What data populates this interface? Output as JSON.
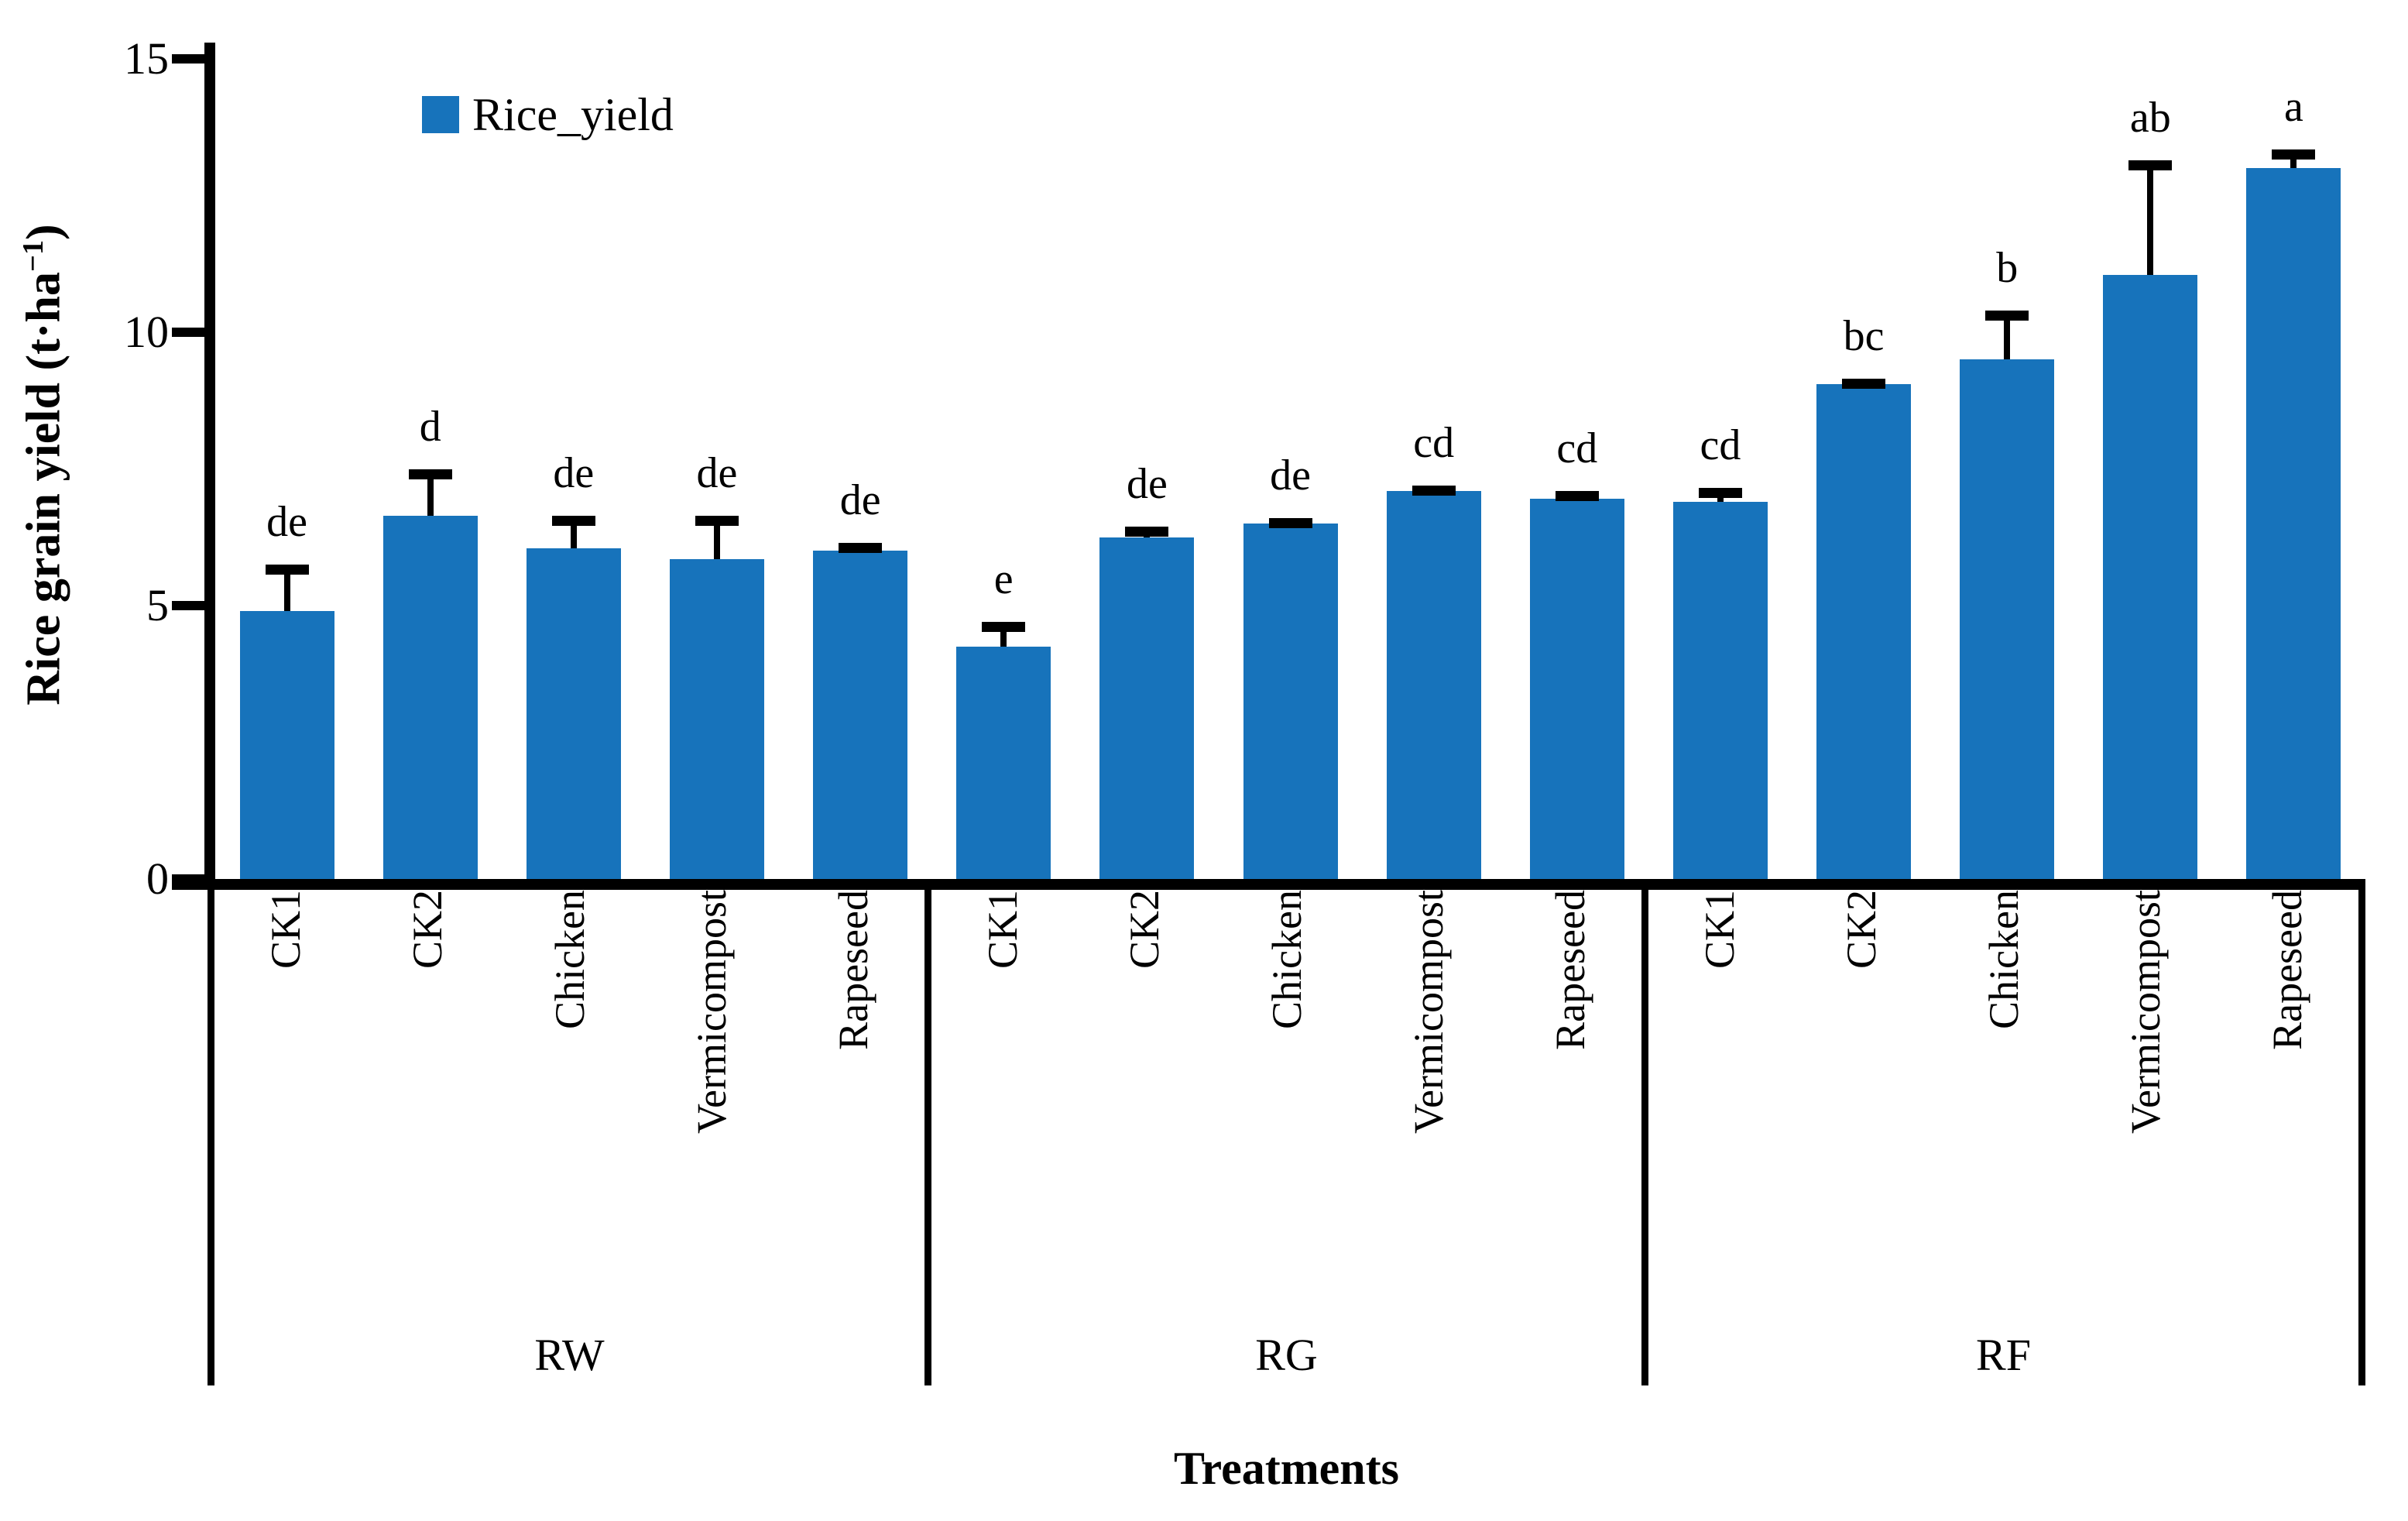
{
  "axes": {
    "y_title_prefix": "Rice grain yield (t·ha",
    "y_title_sup": "−1",
    "y_title_suffix": ")",
    "x_title": "Treatments"
  },
  "legend": {
    "label": "Rice_yield"
  },
  "colors": {
    "bar": "#1773BB",
    "axis": "#000000",
    "error": "#000000",
    "background": "#FFFFFF"
  },
  "chart_data": {
    "type": "bar",
    "title": "",
    "ylabel": "Rice grain yield (t·ha−1)",
    "xlabel": "Treatments",
    "legend_entries": [
      "Rice_yield"
    ],
    "legend_position": "top-left-inside",
    "grid": false,
    "ylim": [
      0,
      15
    ],
    "yticks": [
      0,
      5,
      10,
      15
    ],
    "categories": [
      "CK1",
      "CK2",
      "Chicken",
      "Vermicompost",
      "Rapeseed"
    ],
    "groups": [
      {
        "name": "RW",
        "values": [
          4.9,
          6.65,
          6.05,
          5.85,
          6.0
        ],
        "errors": [
          0.85,
          0.85,
          0.6,
          0.8,
          0.15
        ],
        "letters": [
          "de",
          "d",
          "de",
          "de",
          "de"
        ]
      },
      {
        "name": "RG",
        "values": [
          4.25,
          6.25,
          6.5,
          7.1,
          6.95
        ],
        "errors": [
          0.45,
          0.2,
          0.1,
          0.1,
          0.15
        ],
        "letters": [
          "e",
          "de",
          "de",
          "cd",
          "cd"
        ]
      },
      {
        "name": "RF",
        "values": [
          6.9,
          9.05,
          9.5,
          11.05,
          13.0
        ],
        "errors": [
          0.25,
          0.1,
          0.9,
          2.1,
          0.35
        ],
        "letters": [
          "cd",
          "bc",
          "b",
          "ab",
          "a"
        ]
      }
    ]
  }
}
